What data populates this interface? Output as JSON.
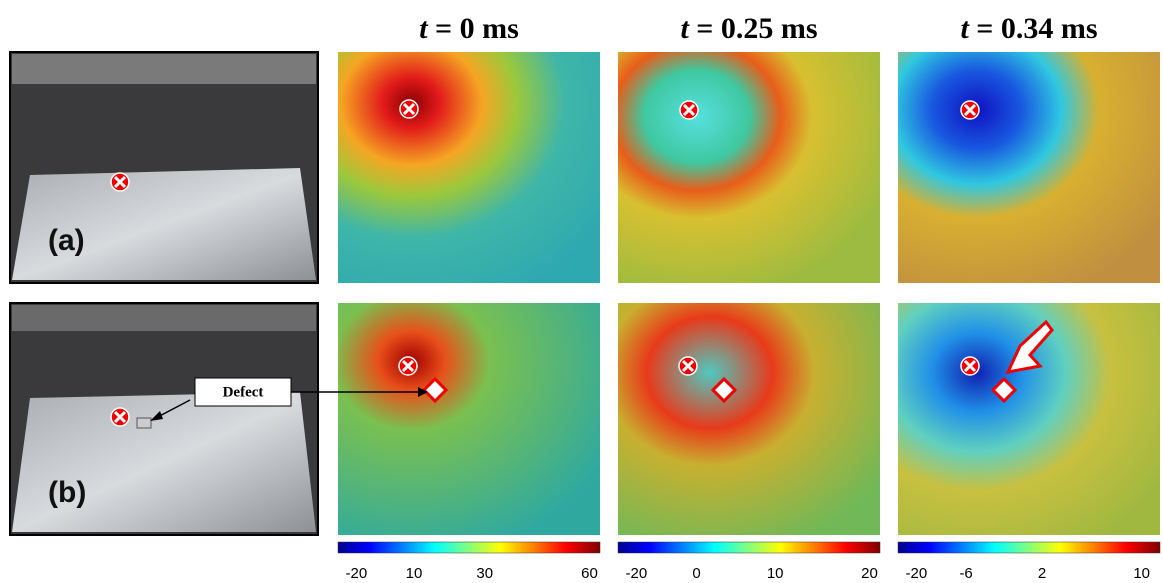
{
  "titles": [
    {
      "var": "t",
      "text": "= 0 ms"
    },
    {
      "var": "t",
      "text": "= 0.25 ms"
    },
    {
      "var": "t",
      "text": "= 0.34 ms"
    }
  ],
  "rows": [
    {
      "label": "(a)"
    },
    {
      "label": "(b)",
      "annotation": "Defect"
    }
  ],
  "colorbars": [
    {
      "ticks": [
        -20,
        10,
        30,
        60
      ]
    },
    {
      "ticks": [
        -20,
        0,
        10,
        20
      ]
    },
    {
      "ticks": [
        -20,
        -6,
        2,
        10
      ]
    }
  ]
}
